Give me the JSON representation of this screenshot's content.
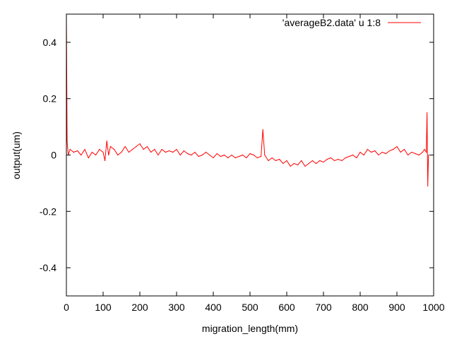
{
  "chart_data": {
    "type": "line",
    "title": "",
    "xlabel": "migration_length(mm)",
    "ylabel": "output(um)",
    "xlim": [
      0,
      1000
    ],
    "ylim": [
      -0.5,
      0.5
    ],
    "x_ticks": [
      0,
      100,
      200,
      300,
      400,
      500,
      600,
      700,
      800,
      900,
      1000
    ],
    "x_tick_labels": [
      "0",
      "100",
      "200",
      "300",
      "400",
      "500",
      "600",
      "700",
      "800",
      "900",
      "1000"
    ],
    "y_ticks": [
      -0.4,
      -0.2,
      0,
      0.2,
      0.4
    ],
    "y_tick_labels": [
      "-0.4",
      "-0.2",
      "0",
      "0.2",
      "0.4"
    ],
    "grid": false,
    "legend_position": "top-right",
    "series": [
      {
        "name": "'averageB2.data' u 1:8",
        "color": "#ff0000",
        "x": [
          0,
          2,
          5,
          10,
          20,
          30,
          40,
          50,
          60,
          70,
          80,
          90,
          100,
          105,
          110,
          115,
          120,
          130,
          140,
          150,
          160,
          170,
          180,
          190,
          200,
          210,
          220,
          230,
          240,
          250,
          260,
          270,
          280,
          290,
          300,
          310,
          320,
          330,
          340,
          350,
          360,
          370,
          380,
          390,
          400,
          410,
          420,
          430,
          440,
          450,
          460,
          470,
          480,
          490,
          500,
          510,
          520,
          530,
          535,
          540,
          550,
          560,
          570,
          580,
          590,
          600,
          610,
          620,
          630,
          640,
          650,
          660,
          670,
          680,
          690,
          700,
          710,
          720,
          730,
          740,
          750,
          760,
          770,
          780,
          790,
          800,
          810,
          820,
          830,
          840,
          850,
          860,
          870,
          880,
          890,
          900,
          910,
          920,
          930,
          940,
          950,
          960,
          970,
          975,
          980,
          982,
          984,
          986
        ],
        "y": [
          0.5,
          0.05,
          0.0,
          0.02,
          0.01,
          0.015,
          0.0,
          0.02,
          -0.01,
          0.01,
          0.0,
          0.02,
          0.01,
          -0.02,
          0.05,
          0.0,
          0.03,
          0.02,
          0.0,
          0.01,
          0.03,
          0.01,
          0.02,
          0.03,
          0.04,
          0.02,
          0.03,
          0.01,
          0.02,
          0.0,
          0.02,
          0.01,
          0.015,
          0.01,
          0.02,
          0.0,
          0.015,
          0.005,
          0.0,
          0.01,
          -0.005,
          0.0,
          0.01,
          0.0,
          -0.01,
          0.005,
          -0.005,
          0.0,
          -0.01,
          0.0,
          -0.01,
          -0.005,
          0.0,
          -0.01,
          0.005,
          0.0,
          -0.01,
          -0.005,
          0.09,
          0.0,
          -0.02,
          -0.01,
          -0.02,
          -0.015,
          -0.03,
          -0.02,
          -0.04,
          -0.03,
          -0.035,
          -0.02,
          -0.04,
          -0.03,
          -0.02,
          -0.03,
          -0.02,
          -0.025,
          -0.015,
          -0.01,
          -0.02,
          -0.015,
          -0.02,
          -0.01,
          -0.005,
          0.0,
          -0.01,
          0.01,
          0.0,
          0.02,
          0.01,
          0.015,
          0.0,
          0.01,
          0.005,
          0.015,
          0.02,
          0.03,
          0.01,
          0.02,
          0.0,
          0.01,
          0.005,
          0.0,
          0.01,
          0.02,
          0.01,
          0.15,
          -0.11,
          0.0
        ]
      }
    ]
  }
}
